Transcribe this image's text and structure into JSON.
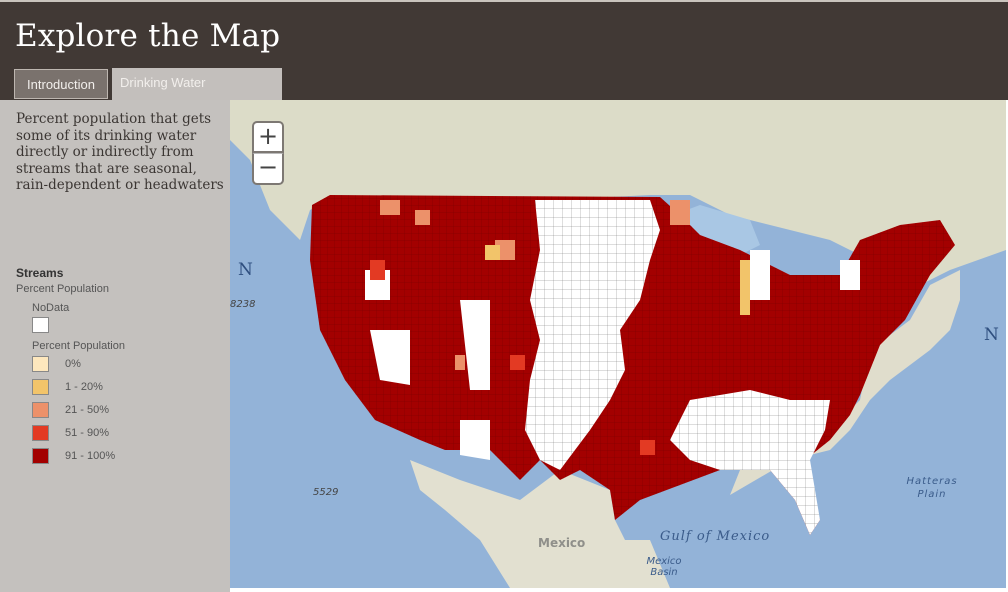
{
  "header": {
    "title": "Explore the Map"
  },
  "tabs": [
    {
      "label": "Introduction",
      "active": false
    },
    {
      "label": "Drinking Water",
      "active": true
    }
  ],
  "sidebar": {
    "description": "Percent population that gets some of its drinking water directly or indirectly from streams that are seasonal, rain-dependent or headwaters",
    "legend": {
      "layer": "Streams",
      "field": "Percent Population",
      "nodata_label": "NoData",
      "nodata_color": "#ffffff",
      "class_title": "Percent Population",
      "classes": [
        {
          "label": "0%",
          "color": "#fde7bd"
        },
        {
          "label": "1 - 20%",
          "color": "#f2c46a"
        },
        {
          "label": "21 - 50%",
          "color": "#ec916a"
        },
        {
          "label": "51 - 90%",
          "color": "#e33a23"
        },
        {
          "label": "91 - 100%",
          "color": "#a30000"
        }
      ]
    }
  },
  "map": {
    "zoom_in": "+",
    "zoom_out": "−",
    "labels": {
      "n_west": "N",
      "depth_west": "8238",
      "depth_south": "5529",
      "mexico": "Mexico",
      "gulf": "Gulf of Mexico",
      "mexico_basin": "Mexico Basin",
      "hatteras": "Hatteras Plain",
      "n_east": "N"
    }
  }
}
